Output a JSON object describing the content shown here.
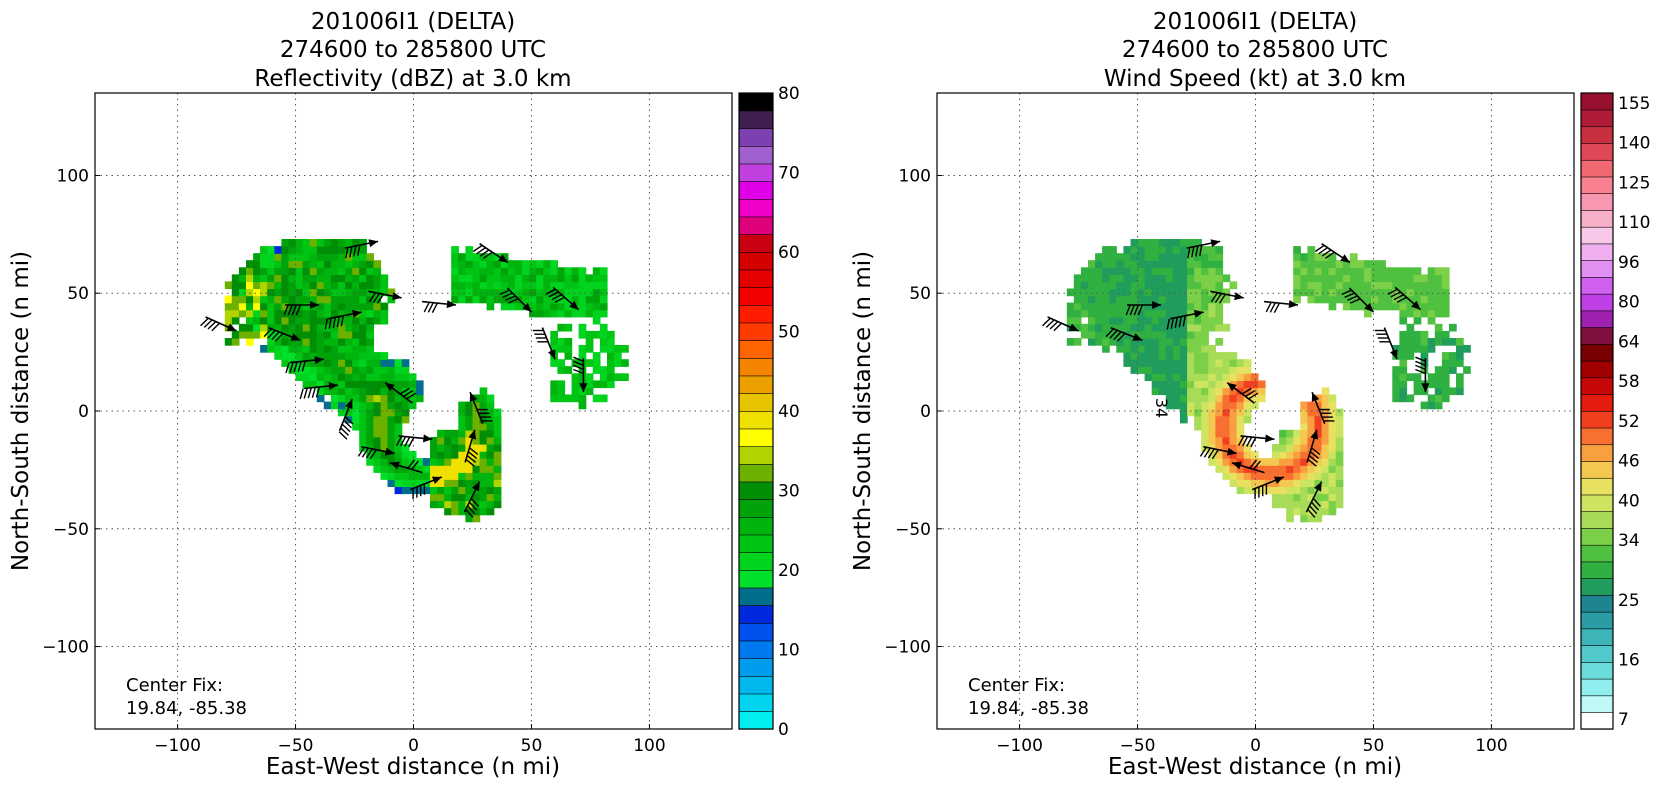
{
  "chart_data": [
    {
      "type": "heatmap",
      "title_lines": [
        "201006I1 (DELTA)",
        "274600 to 285800 UTC",
        "Reflectivity (dBZ) at 3.0 km"
      ],
      "xlabel": "East-West distance (n mi)",
      "ylabel": "North-South distance (n mi)",
      "xlim": [
        -135,
        135
      ],
      "ylim": [
        -135,
        135
      ],
      "xticks": [
        -100,
        -50,
        0,
        50,
        100
      ],
      "yticks": [
        -100,
        -50,
        0,
        50,
        100
      ],
      "xtick_labels": [
        "−100",
        "−50",
        "0",
        "50",
        "100"
      ],
      "ytick_labels": [
        "−100",
        "−50",
        "0",
        "50",
        "100"
      ],
      "grid": true,
      "annotation": [
        "Center Fix:",
        "19.84, -85.38"
      ],
      "colorbar": {
        "min": 0,
        "max": 80,
        "tick_values": [
          0,
          10,
          20,
          30,
          40,
          50,
          60,
          70,
          80
        ],
        "tick_labels": [
          "0",
          "10",
          "20",
          "30",
          "40",
          "50",
          "60",
          "70",
          "80"
        ],
        "colors": [
          "#00eeee",
          "#00d4ee",
          "#00b8ee",
          "#009cee",
          "#0078ee",
          "#0050ee",
          "#0028dd",
          "#006e8c",
          "#00e02a",
          "#00d41e",
          "#00c414",
          "#00b40e",
          "#00a40a",
          "#008e06",
          "#6cb000",
          "#b0d400",
          "#ffff00",
          "#f0e000",
          "#e8c400",
          "#eca000",
          "#f48400",
          "#ff6400",
          "#ff3a00",
          "#ff1c00",
          "#f40000",
          "#e40000",
          "#d40000",
          "#c80010",
          "#e0007c",
          "#f000c8",
          "#e000e8",
          "#c040e0",
          "#a060d0",
          "#7c40b0",
          "#402050",
          "#000000"
        ]
      },
      "barbs": [
        {
          "x": -75,
          "y": 34,
          "u": 1.0,
          "v": -0.45,
          "n": 4
        },
        {
          "x": -48,
          "y": 30,
          "u": 1.0,
          "v": -0.4,
          "n": 4
        },
        {
          "x": -38,
          "y": 22,
          "u": 1.0,
          "v": 0.1,
          "n": 5
        },
        {
          "x": -32,
          "y": 11,
          "u": 1.0,
          "v": 0.1,
          "n": 5
        },
        {
          "x": -26,
          "y": 5,
          "u": 0.4,
          "v": 1.0,
          "n": 5
        },
        {
          "x": -40,
          "y": 45,
          "u": 1.0,
          "v": 0.0,
          "n": 4
        },
        {
          "x": -22,
          "y": 42,
          "u": 1.0,
          "v": 0.2,
          "n": 5
        },
        {
          "x": -15,
          "y": 72,
          "u": 1.0,
          "v": 0.2,
          "n": 4
        },
        {
          "x": -5,
          "y": 48,
          "u": 1.0,
          "v": -0.2,
          "n": 3
        },
        {
          "x": 18,
          "y": 45,
          "u": 1.0,
          "v": -0.1,
          "n": 3
        },
        {
          "x": 40,
          "y": 63,
          "u": 0.9,
          "v": -0.6,
          "n": 4
        },
        {
          "x": 50,
          "y": 42,
          "u": 0.8,
          "v": -0.8,
          "n": 4
        },
        {
          "x": 70,
          "y": 43,
          "u": 0.8,
          "v": -0.7,
          "n": 4
        },
        {
          "x": 60,
          "y": 22,
          "u": 0.4,
          "v": -1.0,
          "n": 4
        },
        {
          "x": 72,
          "y": 8,
          "u": 0.0,
          "v": -1.0,
          "n": 4
        },
        {
          "x": -12,
          "y": 12,
          "u": -0.8,
          "v": 0.6,
          "n": 3
        },
        {
          "x": -8,
          "y": -18,
          "u": 1.0,
          "v": -0.2,
          "n": 4
        },
        {
          "x": 8,
          "y": -12,
          "u": 1.0,
          "v": -0.1,
          "n": 4
        },
        {
          "x": 26,
          "y": -8,
          "u": 0.3,
          "v": 1.0,
          "n": 4
        },
        {
          "x": 24,
          "y": 8,
          "u": -0.4,
          "v": 1.0,
          "n": 4
        },
        {
          "x": 28,
          "y": -30,
          "u": 0.5,
          "v": 1.0,
          "n": 4
        },
        {
          "x": 12,
          "y": -28,
          "u": 1.0,
          "v": 0.4,
          "n": 4
        },
        {
          "x": -10,
          "y": -22,
          "u": -1.0,
          "v": 0.3,
          "n": 2
        }
      ]
    },
    {
      "type": "heatmap",
      "title_lines": [
        "201006I1 (DELTA)",
        "274600 to 285800 UTC",
        "Wind Speed (kt) at 3.0 km"
      ],
      "xlabel": "East-West distance (n mi)",
      "ylabel": "North-South distance (n mi)",
      "xlim": [
        -135,
        135
      ],
      "ylim": [
        -135,
        135
      ],
      "xticks": [
        -100,
        -50,
        0,
        50,
        100
      ],
      "yticks": [
        -100,
        -50,
        0,
        50,
        100
      ],
      "xtick_labels": [
        "−100",
        "−50",
        "0",
        "50",
        "100"
      ],
      "ytick_labels": [
        "−100",
        "−50",
        "0",
        "50",
        "100"
      ],
      "grid": true,
      "annotation": [
        "Center Fix:",
        "19.84, -85.38"
      ],
      "contour_label": "34",
      "colorbar": {
        "tick_labels": [
          "7",
          "16",
          "25",
          "34",
          "40",
          "46",
          "52",
          "58",
          "64",
          "80",
          "96",
          "110",
          "125",
          "140",
          "155"
        ],
        "tick_bins": [
          0,
          3,
          6,
          9,
          11,
          13,
          15,
          17,
          19,
          21,
          23,
          25,
          27,
          29,
          31
        ],
        "colors": [
          "#ffffff",
          "#c0f8f8",
          "#90eeee",
          "#6adcdc",
          "#50c8cc",
          "#3cb4b8",
          "#2a9ca4",
          "#1e8490",
          "#209c5c",
          "#30b040",
          "#50c040",
          "#7cd048",
          "#a8dc58",
          "#cce460",
          "#e8e060",
          "#f4c850",
          "#f8a040",
          "#f87030",
          "#f04020",
          "#e41c10",
          "#c80808",
          "#a00000",
          "#780000",
          "#801040",
          "#a020b0",
          "#c040e8",
          "#d060f0",
          "#e090f0",
          "#f0b0f0",
          "#f8c8e8",
          "#f8b0c8",
          "#f898b0",
          "#f88090",
          "#f06870",
          "#e04858",
          "#c83040",
          "#b01c38",
          "#981030"
        ]
      },
      "barbs": [
        {
          "x": -75,
          "y": 34,
          "u": 1.0,
          "v": -0.45,
          "n": 4
        },
        {
          "x": -48,
          "y": 30,
          "u": 1.0,
          "v": -0.4,
          "n": 4
        },
        {
          "x": -40,
          "y": 45,
          "u": 1.0,
          "v": 0.0,
          "n": 4
        },
        {
          "x": -22,
          "y": 42,
          "u": 1.0,
          "v": 0.2,
          "n": 5
        },
        {
          "x": -15,
          "y": 72,
          "u": 1.0,
          "v": 0.2,
          "n": 4
        },
        {
          "x": -5,
          "y": 48,
          "u": 1.0,
          "v": -0.2,
          "n": 3
        },
        {
          "x": 18,
          "y": 45,
          "u": 1.0,
          "v": -0.1,
          "n": 3
        },
        {
          "x": 40,
          "y": 63,
          "u": 0.9,
          "v": -0.6,
          "n": 4
        },
        {
          "x": 50,
          "y": 42,
          "u": 0.8,
          "v": -0.8,
          "n": 4
        },
        {
          "x": 70,
          "y": 43,
          "u": 0.8,
          "v": -0.7,
          "n": 4
        },
        {
          "x": 60,
          "y": 22,
          "u": 0.4,
          "v": -1.0,
          "n": 4
        },
        {
          "x": 72,
          "y": 8,
          "u": 0.0,
          "v": -1.0,
          "n": 4
        },
        {
          "x": -12,
          "y": 12,
          "u": -0.8,
          "v": 0.6,
          "n": 3
        },
        {
          "x": -8,
          "y": -18,
          "u": 1.0,
          "v": -0.2,
          "n": 4
        },
        {
          "x": 8,
          "y": -12,
          "u": 1.0,
          "v": -0.1,
          "n": 4
        },
        {
          "x": 26,
          "y": -8,
          "u": 0.3,
          "v": 1.0,
          "n": 4
        },
        {
          "x": 24,
          "y": 8,
          "u": -0.4,
          "v": 1.0,
          "n": 4
        },
        {
          "x": 28,
          "y": -30,
          "u": 0.5,
          "v": 1.0,
          "n": 4
        },
        {
          "x": 12,
          "y": -28,
          "u": 1.0,
          "v": 0.4,
          "n": 4
        },
        {
          "x": -10,
          "y": -22,
          "u": -1.0,
          "v": 0.3,
          "n": 2
        }
      ]
    }
  ]
}
